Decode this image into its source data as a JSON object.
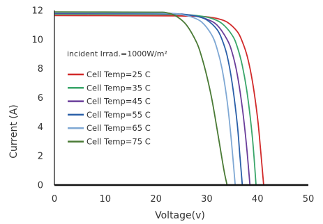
{
  "chart_data": {
    "type": "line",
    "title": "",
    "xlabel": "Voltage(v)",
    "ylabel": "Current (A)",
    "xlim": [
      0,
      50
    ],
    "ylim": [
      0,
      12
    ],
    "xticks": [
      0,
      10,
      20,
      30,
      40,
      50
    ],
    "yticks": [
      0,
      2,
      4,
      6,
      8,
      10,
      12
    ],
    "grid": false,
    "annotation": "incident Irrad.=1000W/m²",
    "legend_position": "center-left",
    "series": [
      {
        "name": "Cell Temp=25 C",
        "color": "#d12a2a",
        "x": [
          0,
          10,
          20,
          25,
          28,
          30,
          32,
          34,
          36,
          37,
          38,
          39,
          40,
          40.6,
          41.2
        ],
        "y": [
          11.65,
          11.64,
          11.63,
          11.62,
          11.6,
          11.56,
          11.45,
          11.2,
          10.55,
          9.85,
          8.8,
          7.1,
          4.6,
          2.4,
          0
        ]
      },
      {
        "name": "Cell Temp=35 C",
        "color": "#3aa66a",
        "x": [
          0,
          10,
          20,
          24,
          27,
          29,
          31,
          33,
          35,
          36,
          37,
          38,
          39,
          39.7
        ],
        "y": [
          11.75,
          11.74,
          11.73,
          11.72,
          11.68,
          11.6,
          11.45,
          11.1,
          10.3,
          9.5,
          8.2,
          6.2,
          3.2,
          0
        ]
      },
      {
        "name": "Cell Temp=45 C",
        "color": "#6a3d9a",
        "x": [
          0,
          10,
          20,
          24,
          26,
          28,
          30,
          32,
          34,
          35,
          36,
          37,
          37.8,
          38.5
        ],
        "y": [
          11.8,
          11.79,
          11.78,
          11.75,
          11.7,
          11.6,
          11.4,
          11.0,
          10.0,
          9.1,
          7.6,
          5.3,
          2.8,
          0
        ]
      },
      {
        "name": "Cell Temp=55 C",
        "color": "#2a5fa8",
        "x": [
          0,
          10,
          20,
          24,
          26,
          28,
          30,
          32,
          33,
          34,
          35,
          36,
          36.5,
          37
        ],
        "y": [
          11.82,
          11.81,
          11.8,
          11.77,
          11.72,
          11.6,
          11.35,
          10.7,
          10.0,
          8.9,
          7.0,
          4.2,
          2.1,
          0
        ]
      },
      {
        "name": "Cell Temp=65 C",
        "color": "#7fa8d4",
        "x": [
          0,
          10,
          20,
          23,
          25,
          27,
          29,
          31,
          32,
          33,
          34,
          34.8,
          35.6
        ],
        "y": [
          11.85,
          11.84,
          11.83,
          11.8,
          11.72,
          11.55,
          11.2,
          10.3,
          9.4,
          8.0,
          5.8,
          3.2,
          0
        ]
      },
      {
        "name": "Cell Temp=75 C",
        "color": "#4a7a35",
        "x": [
          0,
          10,
          20,
          22,
          24,
          26,
          28,
          29,
          30,
          31,
          32,
          33,
          33.5,
          34
        ],
        "y": [
          11.9,
          11.89,
          11.88,
          11.85,
          11.6,
          11.0,
          9.8,
          8.8,
          7.5,
          5.9,
          3.9,
          1.8,
          0.8,
          0
        ]
      }
    ]
  }
}
